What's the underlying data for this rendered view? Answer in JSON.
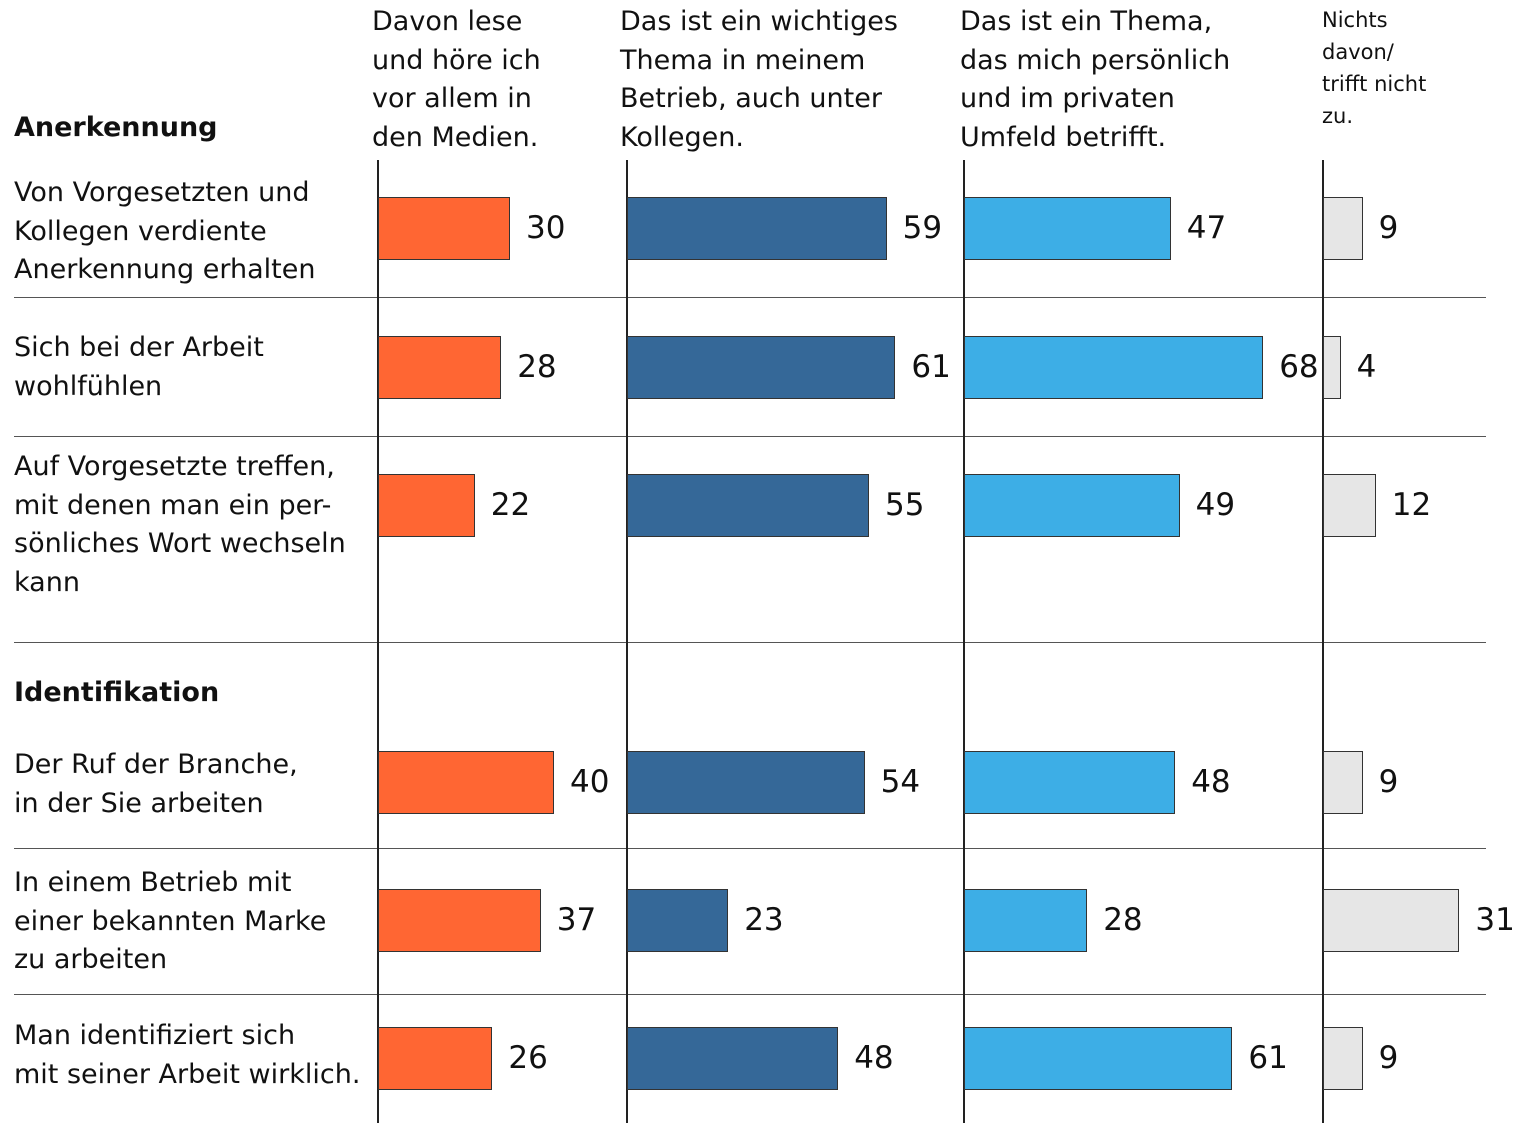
{
  "chart_data": {
    "type": "bar",
    "groups": [
      {
        "name": "Anerkennung"
      },
      {
        "name": "Identifikation"
      }
    ],
    "categories": [
      "Von Vorgesetzten und\nKollegen verdiente\nAnerkennung erhalten",
      "Sich bei der Arbeit\nwohlfühlen",
      "Auf Vorgesetzte treffen,\nmit denen man ein per-\nsönliches Wort wechseln\nkann",
      "Der Ruf der Branche,\nin der Sie arbeiten",
      "In einem Betrieb mit\neiner bekannten Marke\nzu arbeiten",
      "Man identifiziert sich\nmit seiner Arbeit wirklich."
    ],
    "series": [
      {
        "name": "Davon lese\nund höre ich\nvor allem in\nden Medien.",
        "color": "#ff6633",
        "values": [
          30,
          28,
          22,
          40,
          37,
          26
        ]
      },
      {
        "name": "Das ist ein wichtiges\nThema in meinem\nBetrieb, auch unter\nKollegen.",
        "color": "#356898",
        "values": [
          59,
          61,
          55,
          54,
          23,
          48
        ]
      },
      {
        "name": "Das ist ein Thema,\ndas mich persönlich\nund im privaten\nUmfeld betrifft.",
        "color": "#3daee6",
        "values": [
          47,
          68,
          49,
          48,
          28,
          61
        ]
      },
      {
        "name": "Nichts\ndavon/\ntrifft nicht\nzu.",
        "color": "#e6e6e6",
        "values": [
          9,
          4,
          12,
          9,
          31,
          9
        ]
      }
    ]
  }
}
